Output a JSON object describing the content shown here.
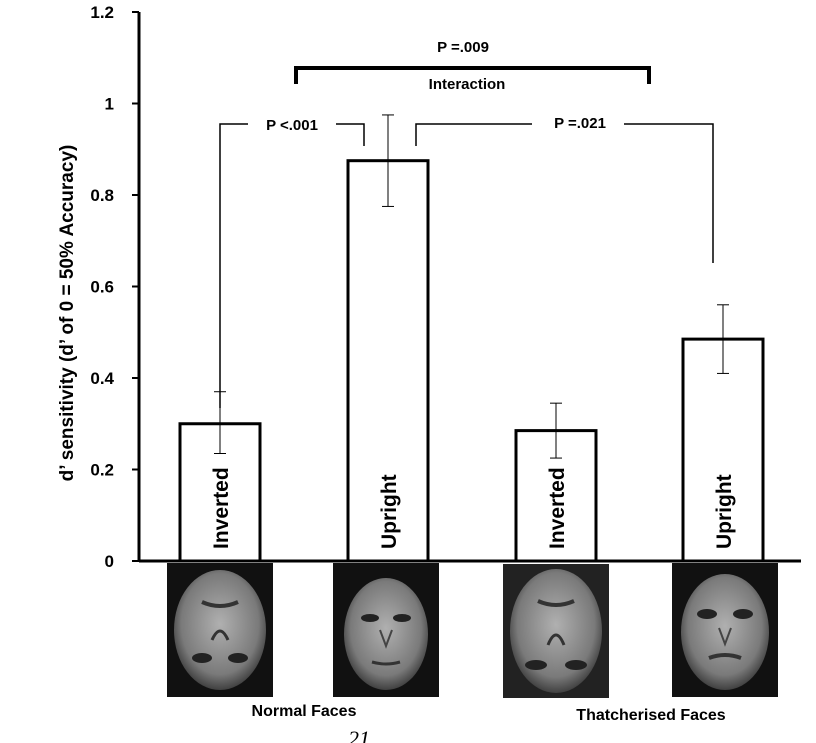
{
  "chart_data": {
    "type": "bar",
    "title": "",
    "xlabel": "",
    "ylabel": "d’ sensitivity (d’ of 0 = 50% Accuracy)",
    "ylim": [
      0,
      1.2
    ],
    "yticks": [
      0,
      0.2,
      0.4,
      0.6,
      0.8,
      1,
      1.2
    ],
    "ytick_labels": [
      "0",
      "0.2",
      "0.4",
      "0.6",
      "0.8",
      "1",
      "1.2"
    ],
    "grid": false,
    "categories": [
      "Inverted",
      "Upright",
      "Inverted",
      "Upright"
    ],
    "values": [
      0.3,
      0.875,
      0.285,
      0.485
    ],
    "error_low": [
      0.235,
      0.775,
      0.225,
      0.41
    ],
    "error_high": [
      0.37,
      0.975,
      0.345,
      0.56
    ],
    "groups": [
      "Normal Faces",
      "Thatcherised Faces"
    ],
    "annotations": {
      "interaction_p": "P =.009",
      "interaction_label": "Interaction",
      "normal_p": "P <.001",
      "upright_p": "P =.021"
    },
    "bar_fill": "#ffffff",
    "bar_stroke": "#000000"
  },
  "page_number": "21",
  "face_icons": [
    "face-inverted-normal",
    "face-upright-normal",
    "face-inverted-thatcherised",
    "face-upright-thatcherised"
  ]
}
